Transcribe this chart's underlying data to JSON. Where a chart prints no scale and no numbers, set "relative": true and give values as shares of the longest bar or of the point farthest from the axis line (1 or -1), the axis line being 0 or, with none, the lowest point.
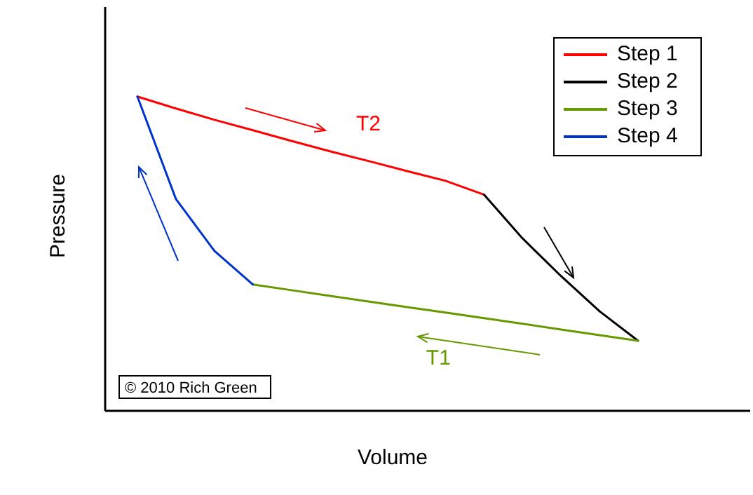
{
  "chart_data": {
    "type": "line",
    "relative": true,
    "xlabel": "Volume",
    "ylabel": "Pressure",
    "legend": "top right",
    "tick_labels": false,
    "categories": [
      null,
      null,
      null,
      null,
      null,
      null,
      null,
      null,
      null,
      null,
      null,
      null,
      null,
      null
    ],
    "series": [
      {
        "name": "Step 1",
        "color": "#ff0000",
        "values": [
          1.0,
          0.962,
          0.926,
          0.893,
          0.859,
          0.826,
          0.795,
          0.763,
          0.732,
          0.688,
          null,
          null,
          null,
          null
        ]
      },
      {
        "name": "Step 2",
        "color": "#000000",
        "values": [
          null,
          null,
          null,
          null,
          null,
          null,
          null,
          null,
          null,
          0.688,
          0.549,
          0.429,
          0.317,
          0.223
        ]
      },
      {
        "name": "Step 3",
        "color": "#669900",
        "values": [
          null,
          null,
          null,
          0.402,
          0.384,
          0.366,
          0.348,
          0.33,
          0.313,
          0.295,
          0.277,
          0.259,
          0.241,
          0.223
        ]
      },
      {
        "name": "Step 4",
        "color": "#0033cc",
        "values": [
          1.0,
          0.674,
          0.509,
          0.402,
          null,
          null,
          null,
          null,
          null,
          null,
          null,
          null,
          null,
          null
        ]
      }
    ],
    "annotations": [
      "T2",
      "T1",
      "© 2010 Rich Green"
    ]
  }
}
